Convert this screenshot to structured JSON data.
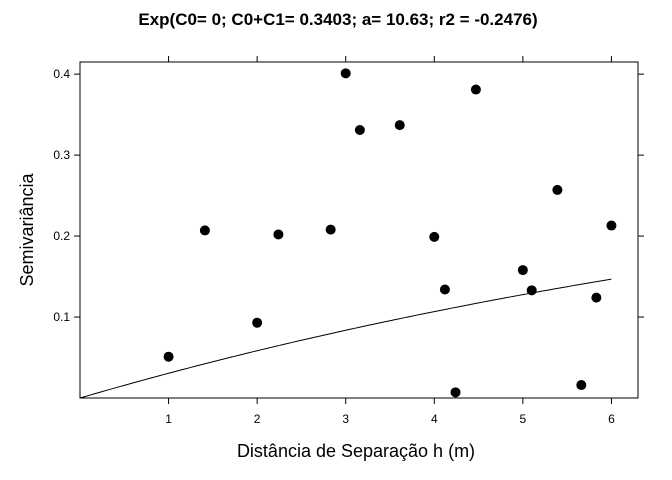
{
  "chart_data": {
    "type": "scatter",
    "title": "Exp(C0= 0; C0+C1= 0.3403; a= 10.63; r2 = -0.2476)",
    "xlabel": "Distância de Separação h (m)",
    "ylabel": "Semivariância",
    "xlim": [
      0,
      6.3
    ],
    "ylim": [
      0,
      0.415
    ],
    "x_ticks": [
      1,
      2,
      3,
      4,
      5,
      6
    ],
    "y_ticks": [
      0.1,
      0.2,
      0.3,
      0.4
    ],
    "x_tick_labels": [
      "1",
      "2",
      "3",
      "4",
      "5",
      "6"
    ],
    "y_tick_labels": [
      "0.1",
      "0.2",
      "0.3",
      "0.4"
    ],
    "grid": false,
    "colors": {
      "points": "#000000",
      "line": "#000000",
      "frame": "#000000"
    },
    "series": [
      {
        "kind": "points",
        "x": [
          1.0,
          1.41,
          2.0,
          2.24,
          2.83,
          3.0,
          3.16,
          3.61,
          4.0,
          4.12,
          4.24,
          4.47,
          5.0,
          5.1,
          5.39,
          5.66,
          5.83,
          6.0
        ],
        "y": [
          0.051,
          0.207,
          0.093,
          0.202,
          0.208,
          0.401,
          0.331,
          0.337,
          0.199,
          0.134,
          0.007,
          0.381,
          0.158,
          0.133,
          0.257,
          0.016,
          0.124,
          0.213
        ]
      },
      {
        "kind": "model",
        "model": "exponential",
        "c0": 0,
        "sill": 0.3403,
        "a": 10.63,
        "x_range": [
          0,
          6
        ]
      }
    ]
  }
}
